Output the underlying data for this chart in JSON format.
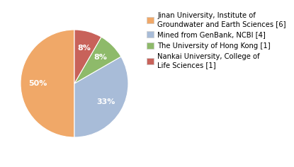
{
  "labels": [
    "Jinan University, Institute of\nGroundwater and Earth Sciences [6]",
    "Mined from GenBank, NCBI [4]",
    "The University of Hong Kong [1]",
    "Nankai University, College of\nLife Sciences [1]"
  ],
  "values": [
    6,
    4,
    1,
    1
  ],
  "colors": [
    "#f0a868",
    "#a8bcd8",
    "#8eba6a",
    "#c8625a"
  ],
  "startangle": 90,
  "background_color": "#ffffff",
  "text_color": "#ffffff",
  "pct_fontsize": 8.0,
  "legend_fontsize": 7.2
}
